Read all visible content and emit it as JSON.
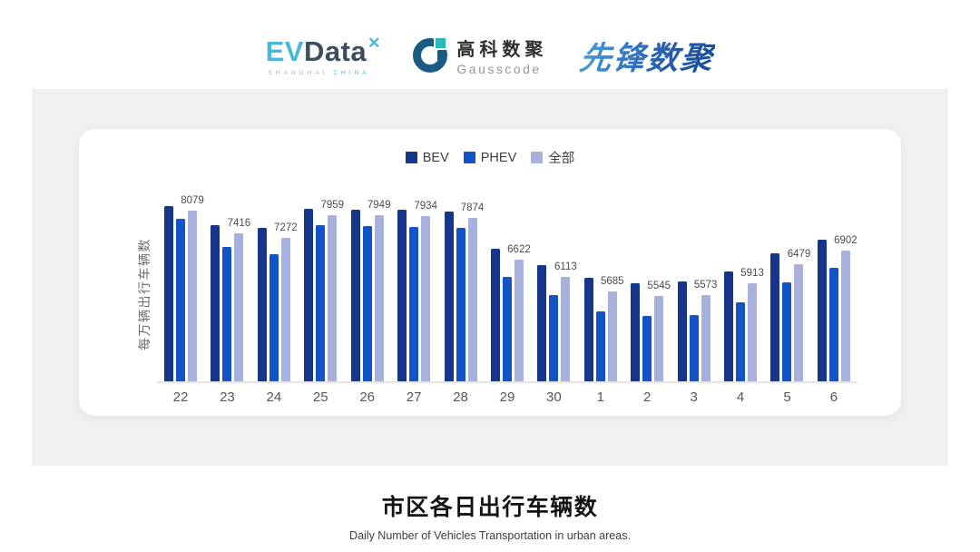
{
  "header": {
    "evdata": {
      "ev": "EV",
      "data": "Data",
      "mark": "✕",
      "sub_left": "SHANGHAI",
      "sub_right": "CHINA"
    },
    "gausscode": {
      "name_cn": "高科数聚",
      "name_en": "Gausscode"
    },
    "pioneer": {
      "name": "先锋数聚"
    }
  },
  "chart_data": {
    "type": "bar",
    "title": "市区各日出行车辆数",
    "ylabel": "每万辆出行车辆数",
    "categories": [
      "22",
      "23",
      "24",
      "25",
      "26",
      "27",
      "28",
      "29",
      "30",
      "1",
      "2",
      "3",
      "4",
      "5",
      "6"
    ],
    "series": [
      {
        "name": "BEV",
        "color": "#16368c",
        "values": [
          8210,
          7660,
          7570,
          8150,
          8120,
          8120,
          8060,
          6950,
          6470,
          6080,
          5920,
          5980,
          6280,
          6810,
          7230
        ]
      },
      {
        "name": "PHEV",
        "color": "#1254c8",
        "values": [
          7850,
          7010,
          6780,
          7640,
          7620,
          7590,
          7570,
          6110,
          5560,
          5070,
          4960,
          4980,
          5350,
          5940,
          6380
        ]
      },
      {
        "name": "全部",
        "color": "#a7b1dd",
        "data_labels": true,
        "values": [
          8079,
          7416,
          7272,
          7959,
          7949,
          7934,
          7874,
          6622,
          6113,
          5685,
          5545,
          5573,
          5913,
          6479,
          6902
        ]
      }
    ],
    "ylim": [
      3000,
      8300
    ],
    "grid": false,
    "legend_position": "top"
  },
  "footer": {
    "title": "市区各日出行车辆数",
    "subtitle": "Daily Number of Vehicles Transportation in urban areas."
  }
}
